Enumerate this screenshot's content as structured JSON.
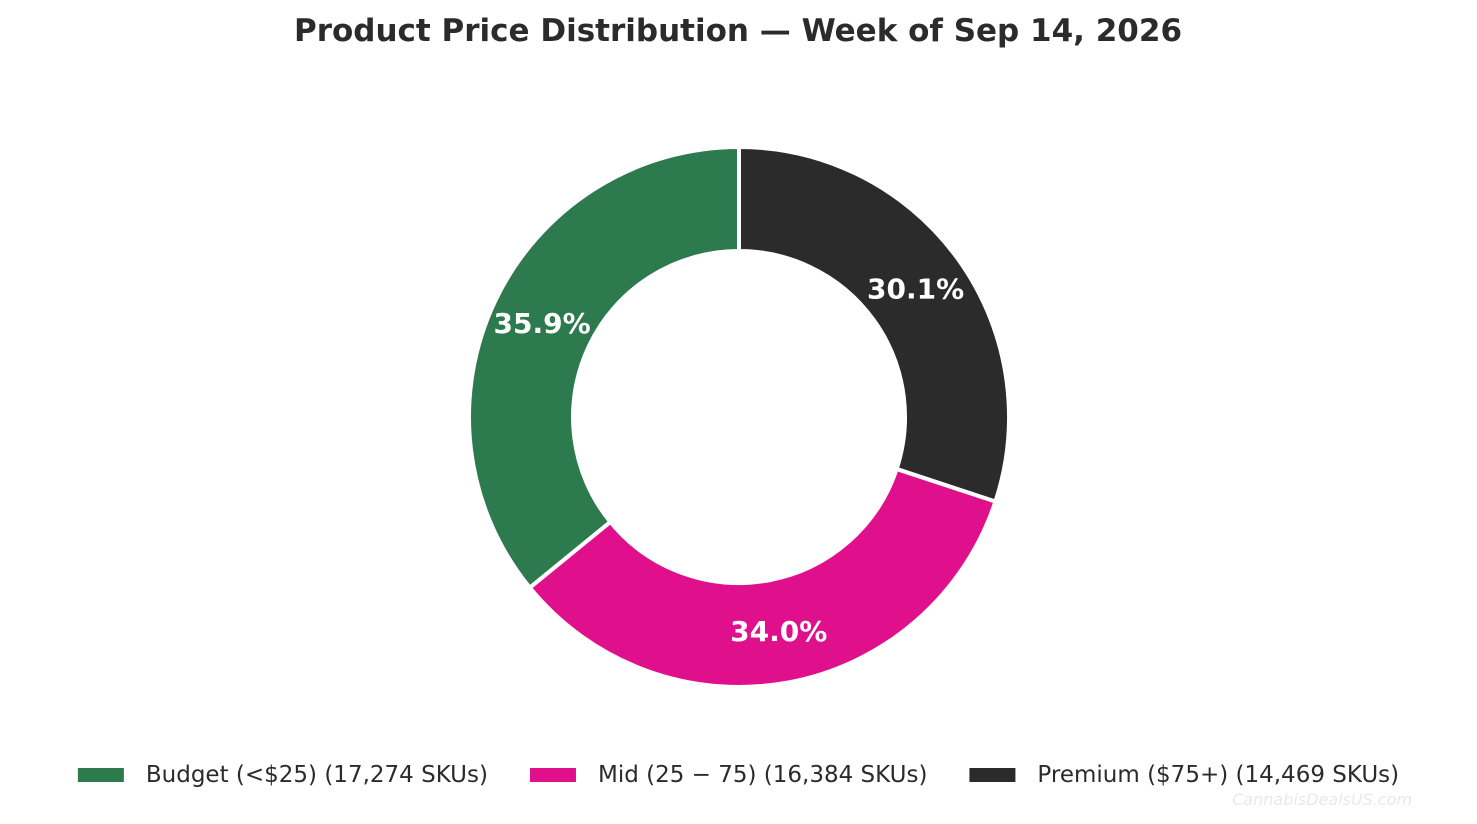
{
  "chart_data": {
    "type": "pie",
    "style": "donut",
    "title": "Product Price Distribution — Week of Sep 14, 2026",
    "start_angle_deg": 90,
    "direction": "counterclockwise",
    "legend_position": "bottom",
    "slices": [
      {
        "label": "Budget (<$25)  (17,274 SKUs)",
        "value": 17274,
        "pct_label": "35.9%",
        "color": "#2e7a4f"
      },
      {
        "label": "Mid (25 − 75)  (16,384 SKUs)",
        "value": 16384,
        "pct_label": "34.0%",
        "color": "#e0108c"
      },
      {
        "label": "Premium ($75+)  (14,469 SKUs)",
        "value": 14469,
        "pct_label": "30.1%",
        "color": "#2b2b2b"
      }
    ]
  },
  "watermark": "CannabisDealsUS.com"
}
